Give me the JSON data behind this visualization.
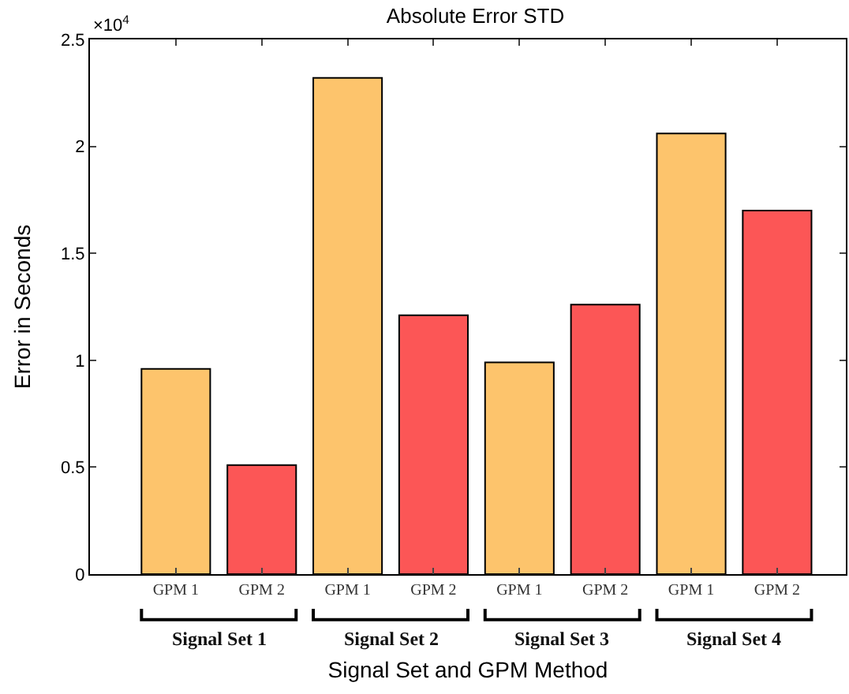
{
  "chart_data": {
    "type": "bar",
    "title": "Absolute Error STD",
    "xlabel": "Signal Set and GPM Method",
    "ylabel": "Error in Seconds",
    "categories": [
      "GPM 1",
      "GPM 2",
      "GPM 1",
      "GPM 2",
      "GPM 1",
      "GPM 2",
      "GPM 1",
      "GPM 2"
    ],
    "values": [
      0.96,
      0.51,
      2.32,
      1.21,
      0.99,
      1.26,
      2.06,
      1.7
    ],
    "colors": [
      "#fdc46c",
      "#fc5656",
      "#fdc46c",
      "#fc5656",
      "#fdc46c",
      "#fc5656",
      "#fdc46c",
      "#fc5656"
    ],
    "ylim": [
      0,
      2.5
    ],
    "yticks": [
      0,
      0.5,
      1,
      1.5,
      2,
      2.5
    ],
    "annotations": [
      "×10$^{4}$",
      "Signal Set 1",
      "Signal Set 2",
      "Signal Set 3",
      "Signal Set 4"
    ]
  }
}
